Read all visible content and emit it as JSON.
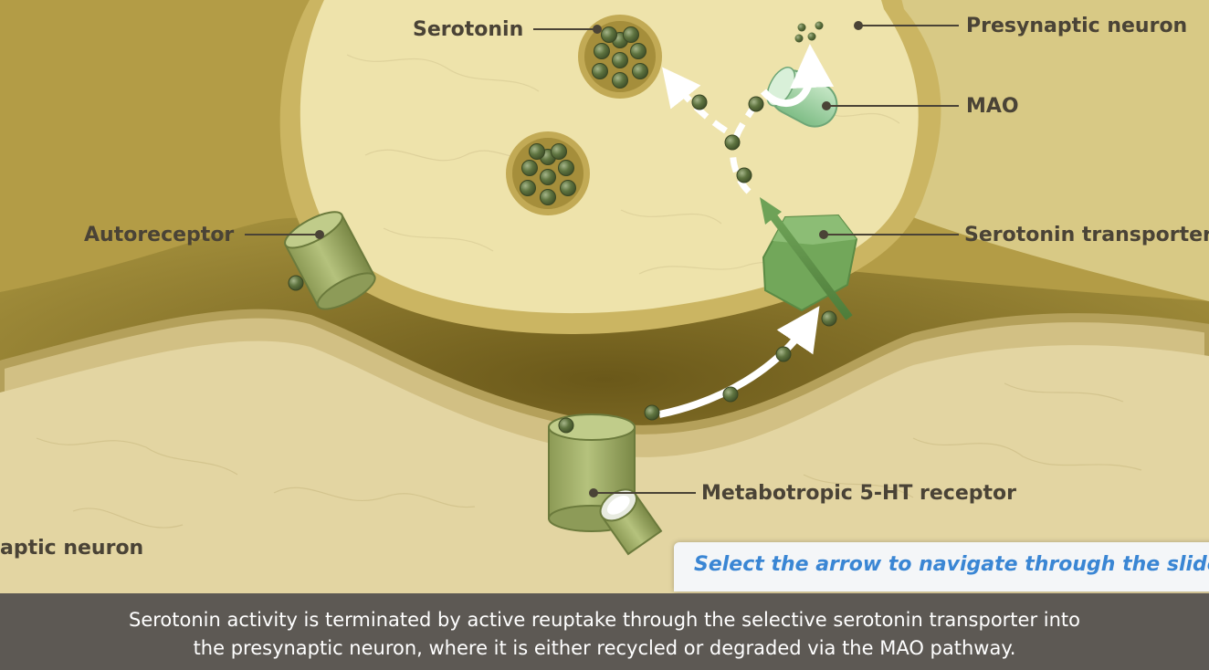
{
  "labels": {
    "serotonin": "Serotonin",
    "presynaptic_neuron": "Presynaptic neuron",
    "mao": "MAO",
    "autoreceptor": "Autoreceptor",
    "serotonin_transporter": "Serotonin transporter",
    "metabotropic_receptor": "Metabotropic 5-HT receptor",
    "postsynaptic_neuron_partial": "aptic neuron"
  },
  "hint": "Select the arrow to navigate through the slides",
  "caption": {
    "line1": "Serotonin activity is terminated by active reuptake through the selective serotonin transporter into",
    "line2": "the presynaptic neuron, where it is either recycled or degraded via the MAO pathway."
  },
  "colors": {
    "neuron_fill": "#ecdfa4",
    "neuron_rim": "#c8b45f",
    "cleft": "#7d6a24",
    "receptor_green": "#9aa865",
    "transporter_green": "#6fa457",
    "mao_green": "#9fd0a3",
    "serotonin_dot": "#556b37",
    "arrow_green": "#5c8b45",
    "hint_text": "#3a86d4",
    "caption_bg": "#5d5954"
  }
}
